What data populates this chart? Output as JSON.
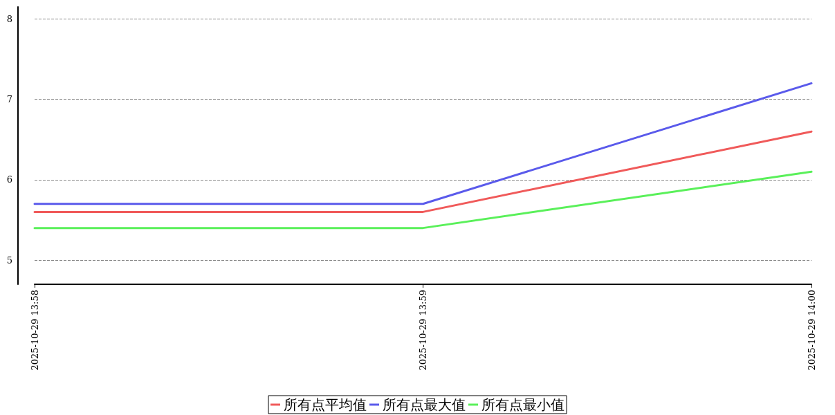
{
  "chart_data": {
    "type": "line",
    "categories": [
      "2025-10-29 13:58",
      "2025-10-29 13:59",
      "2025-10-29 14:00"
    ],
    "series": [
      {
        "name": "所有点平均值",
        "color": "#f05a5a",
        "values": [
          5.6,
          5.6,
          6.6
        ]
      },
      {
        "name": "所有点最大值",
        "color": "#5a5aeb",
        "values": [
          5.7,
          5.7,
          7.2
        ]
      },
      {
        "name": "所有点最小值",
        "color": "#5af05a",
        "values": [
          5.4,
          5.4,
          6.1
        ]
      }
    ],
    "ylim": [
      4.7,
      8.15
    ],
    "yticks": [
      5,
      6,
      7,
      8
    ],
    "grid": "y",
    "legend": "bottom",
    "marker": "none",
    "line_style": "solid"
  }
}
